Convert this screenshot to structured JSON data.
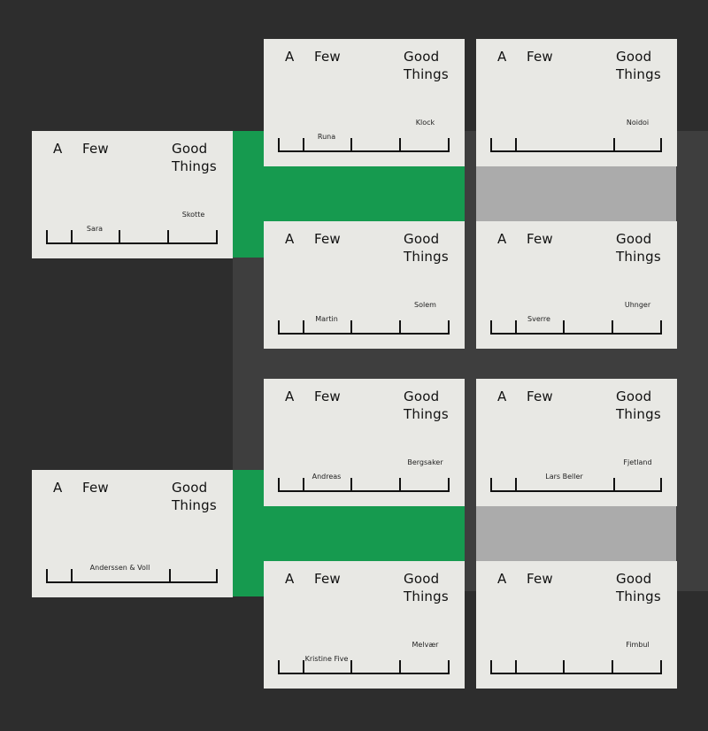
{
  "brand": {
    "w1": "A",
    "w2": "Few",
    "w3": "Good",
    "w4": "Things"
  },
  "colors": {
    "background": "#2d2d2d",
    "panel": "#3e3e3e",
    "accent_green": "#169a4f",
    "band_grey": "#ababab",
    "card": "#e8e8e4",
    "ink": "#111111"
  },
  "cards": [
    {
      "first": "Sara",
      "last": "Skotte"
    },
    {
      "first": "Runa",
      "last": "Klock"
    },
    {
      "first": "",
      "last": "Noidoi"
    },
    {
      "first": "Martin",
      "last": "Solem"
    },
    {
      "first": "Sverre",
      "last": "Uhnger"
    },
    {
      "first": "Andreas",
      "last": "Bergsaker"
    },
    {
      "first": "Lars Beller",
      "last": "Fjetland"
    },
    {
      "first": "Anderssen & Voll",
      "last": ""
    },
    {
      "first": "Kristine Five",
      "last": "Melvær"
    },
    {
      "first": "",
      "last": "Fimbul"
    }
  ]
}
